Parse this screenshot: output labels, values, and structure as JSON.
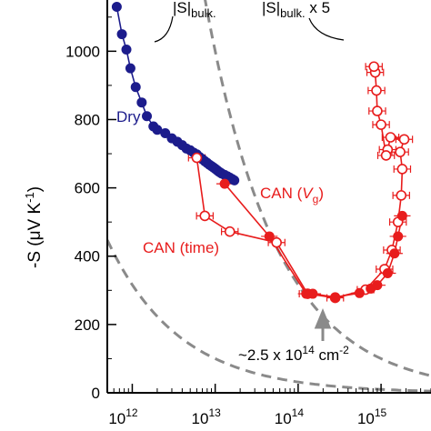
{
  "chart_data": {
    "type": "scatter",
    "title": "",
    "ylabel": {
      "main": "-S (μV K",
      "sup": "-1",
      "tail": ")"
    },
    "xlabel": "",
    "xscale": "log",
    "xlim": [
      500000000000.0,
      4000000000000000.0
    ],
    "ylim": [
      0,
      1150
    ],
    "grid": false,
    "x_ticks": [
      {
        "value": 1000000000000.0,
        "base": "10",
        "exp": "12"
      },
      {
        "value": 10000000000000.0,
        "base": "10",
        "exp": "13"
      },
      {
        "value": 100000000000000.0,
        "base": "10",
        "exp": "14"
      },
      {
        "value": 1000000000000000.0,
        "base": "10",
        "exp": "15"
      }
    ],
    "y_ticks": [
      0,
      200,
      400,
      600,
      800,
      1000
    ],
    "colors": {
      "dry": "#1c1c8c",
      "can": "#e81c1c",
      "reference": "#8a8a8a"
    },
    "series": [
      {
        "name": "Dry",
        "style": "filled",
        "points": [
          [
            650000000000.0,
            1130
          ],
          [
            750000000000.0,
            1050
          ],
          [
            850000000000.0,
            1005
          ],
          [
            950000000000.0,
            950
          ],
          [
            1100000000000.0,
            895
          ],
          [
            1300000000000.0,
            850
          ],
          [
            1500000000000.0,
            810
          ],
          [
            1800000000000.0,
            780
          ],
          [
            2000000000000.0,
            770
          ],
          [
            2500000000000.0,
            760
          ],
          [
            3000000000000.0,
            745
          ],
          [
            3500000000000.0,
            735
          ],
          [
            4000000000000.0,
            725
          ],
          [
            4500000000000.0,
            715
          ],
          [
            5000000000000.0,
            710
          ],
          [
            5500000000000.0,
            703
          ],
          [
            6000000000000.0,
            698
          ],
          [
            6500000000000.0,
            690
          ],
          [
            7000000000000.0,
            684
          ],
          [
            7500000000000.0,
            678
          ],
          [
            8000000000000.0,
            673
          ],
          [
            8500000000000.0,
            668
          ],
          [
            9000000000000.0,
            664
          ],
          [
            9500000000000.0,
            660
          ],
          [
            10000000000000.0,
            656
          ],
          [
            10500000000000.0,
            652
          ],
          [
            11000000000000.0,
            648
          ],
          [
            11500000000000.0,
            645
          ],
          [
            12000000000000.0,
            642
          ],
          [
            13000000000000.0,
            638
          ],
          [
            14000000000000.0,
            634
          ],
          [
            15000000000000.0,
            630
          ],
          [
            16000000000000.0,
            626
          ],
          [
            17000000000000.0,
            622
          ]
        ]
      },
      {
        "name": "CAN (time)",
        "style": "filled",
        "points": [
          [
            13000000000000.0,
            612
          ],
          [
            45000000000000.0,
            458
          ],
          [
            125000000000000.0,
            290
          ],
          [
            150000000000000.0,
            290
          ],
          [
            280000000000000.0,
            280
          ],
          [
            550000000000000.0,
            292
          ],
          [
            750000000000000.0,
            305
          ],
          [
            900000000000000.0,
            315
          ],
          [
            1200000000000000.0,
            350
          ],
          [
            1450000000000000.0,
            408
          ],
          [
            1600000000000000.0,
            458
          ],
          [
            1800000000000000.0,
            518
          ]
        ]
      },
      {
        "name": "CAN (Vg)",
        "style": "open",
        "points": [
          [
            6000000000000.0,
            688
          ],
          [
            7500000000000.0,
            518
          ],
          [
            15000000000000.0,
            472
          ],
          [
            55000000000000.0,
            440
          ],
          [
            130000000000000.0,
            290
          ],
          [
            280000000000000.0,
            278
          ],
          [
            650000000000000.0,
            302
          ],
          [
            1100000000000000.0,
            362
          ],
          [
            1350000000000000.0,
            418
          ],
          [
            1600000000000000.0,
            500
          ],
          [
            1750000000000000.0,
            578
          ],
          [
            1800000000000000.0,
            655
          ],
          [
            1700000000000000.0,
            705
          ],
          [
            1900000000000000.0,
            742
          ],
          [
            1300000000000000.0,
            748
          ],
          [
            1200000000000000.0,
            712
          ],
          [
            1150000000000000.0,
            695
          ],
          [
            1000000000000000.0,
            785
          ],
          [
            900000000000000.0,
            825
          ],
          [
            880000000000000.0,
            885
          ],
          [
            850000000000000.0,
            938
          ],
          [
            820000000000000.0,
            955
          ]
        ],
        "xerr_dex": 0.1
      },
      {
        "name": "|S|bulk.",
        "style": "dashed",
        "curve": {
          "a": 1000,
          "b": 0.5,
          "c": -0.5
        }
      },
      {
        "name": "|S|bulk. x 5",
        "style": "dashed",
        "curve": {
          "a": 1000,
          "b": 0.5,
          "c": 0.5
        }
      }
    ],
    "labels": {
      "dry": "Dry",
      "can_time": "CAN (time)",
      "can_vg_prefix": "CAN (",
      "can_vg_var": "V",
      "can_vg_sub": "g",
      "can_vg_suffix": ")",
      "bulk": "|S|",
      "bulk_sub": "bulk.",
      "bulk5": "|S|",
      "bulk5_sub": "bulk.",
      "bulk5_suffix": " x 5",
      "arrow_note_prefix": "~2.5 x 10",
      "arrow_note_exp": "14",
      "arrow_note_unit": " cm",
      "arrow_note_unit_exp": "-2"
    }
  }
}
